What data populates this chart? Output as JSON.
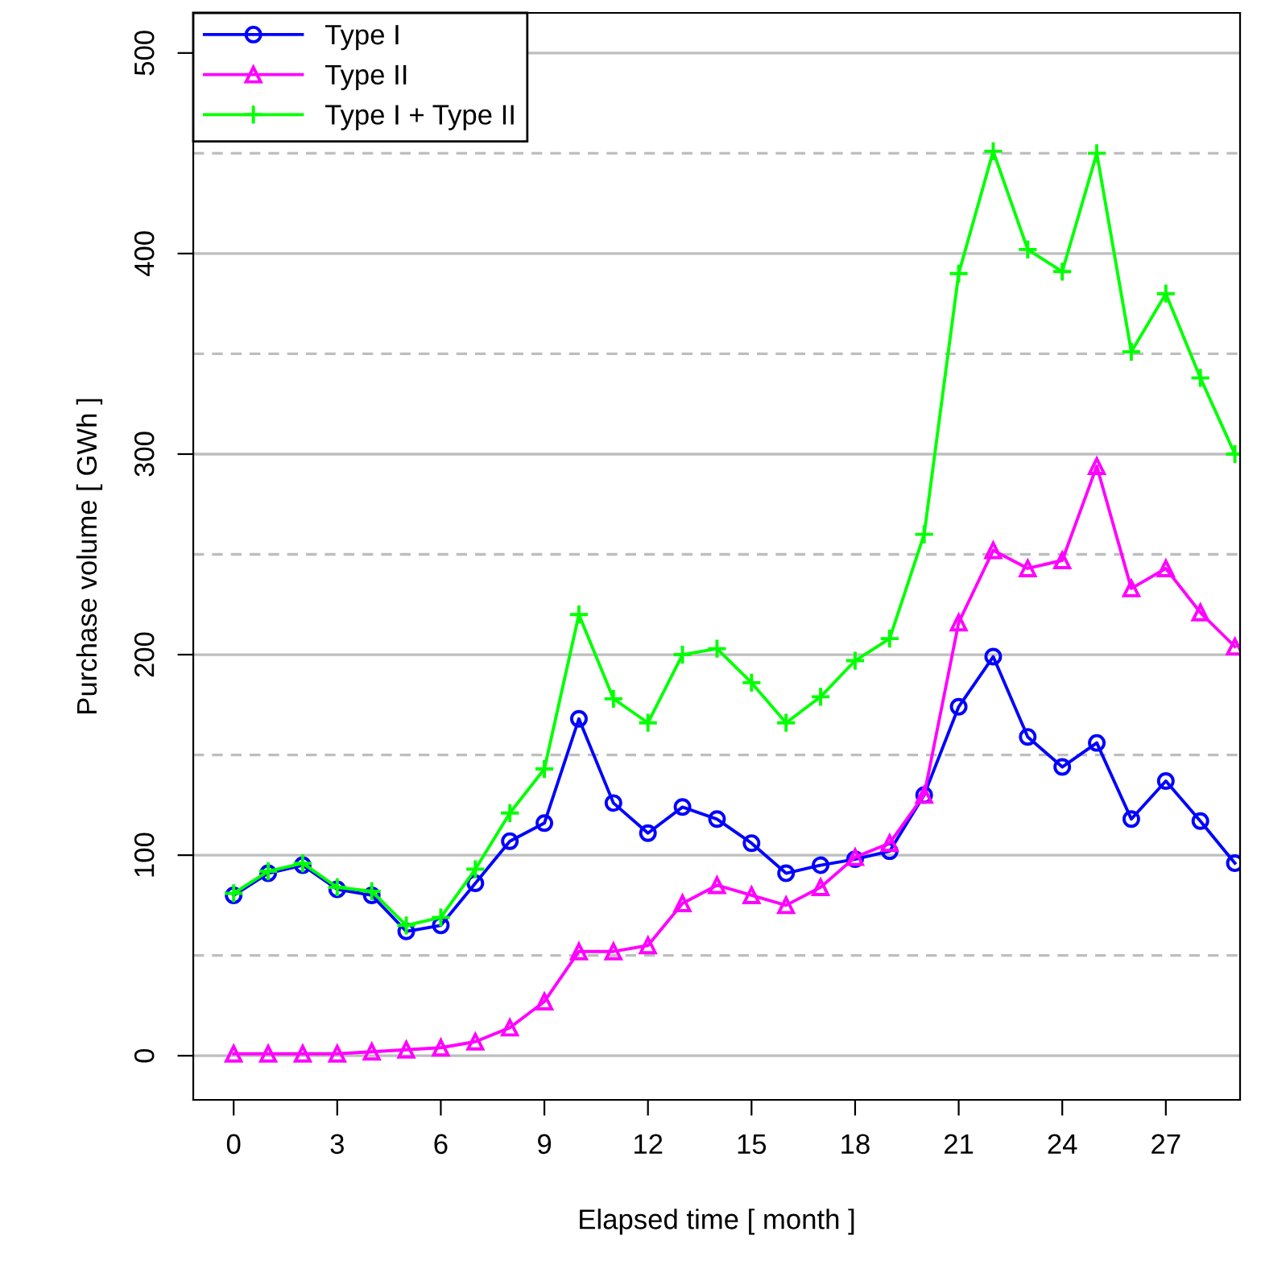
{
  "chart_data": {
    "type": "line",
    "xlabel": "Elapsed time [ month ]",
    "ylabel": "Purchase volume [ GWh ]",
    "x": [
      0,
      1,
      2,
      3,
      4,
      5,
      6,
      7,
      8,
      9,
      10,
      11,
      12,
      13,
      14,
      15,
      16,
      17,
      18,
      19,
      20,
      21,
      22,
      23,
      24,
      25,
      26,
      27,
      28,
      29
    ],
    "series": [
      {
        "name": "Type I",
        "color": "#0000ff",
        "marker": "circle",
        "values": [
          80,
          91,
          95,
          83,
          80,
          62,
          65,
          86,
          107,
          116,
          168,
          126,
          111,
          124,
          118,
          106,
          91,
          95,
          98,
          102,
          130,
          174,
          199,
          159,
          144,
          156,
          118,
          137,
          117,
          96
        ]
      },
      {
        "name": "Type II",
        "color": "#ff00ff",
        "marker": "triangle",
        "values": [
          1,
          1,
          1,
          1,
          2,
          3,
          4,
          7,
          14,
          27,
          52,
          52,
          55,
          76,
          85,
          80,
          75,
          84,
          99,
          106,
          130,
          216,
          252,
          243,
          247,
          294,
          233,
          243,
          221,
          204
        ]
      },
      {
        "name": "Type I + Type II",
        "color": "#00ff00",
        "marker": "cross",
        "values": [
          81,
          92,
          96,
          84,
          82,
          65,
          69,
          93,
          121,
          143,
          220,
          178,
          166,
          200,
          203,
          186,
          166,
          179,
          197,
          208,
          260,
          390,
          451,
          402,
          391,
          450,
          351,
          380,
          338,
          300
        ]
      }
    ],
    "xlim": [
      -1.17,
      29.15
    ],
    "ylim": [
      -22,
      520
    ],
    "xticks": [
      0,
      3,
      6,
      9,
      12,
      15,
      18,
      21,
      24,
      27
    ],
    "yticks": [
      0,
      100,
      200,
      300,
      400,
      500
    ],
    "grid": "y",
    "legend": "top left",
    "line_style": "solid"
  }
}
